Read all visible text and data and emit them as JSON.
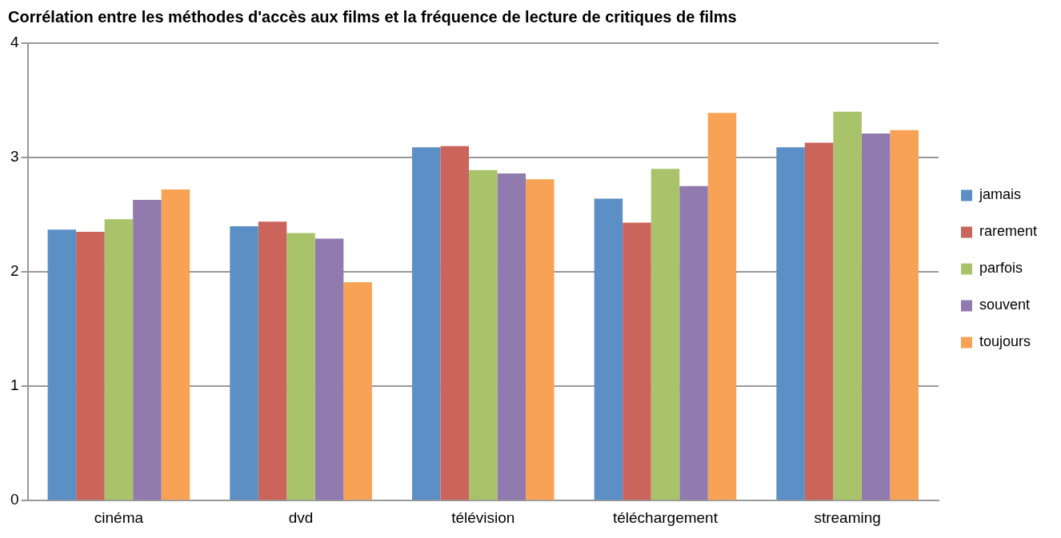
{
  "chart_data": {
    "type": "bar",
    "title": "Corrélation entre les méthodes d'accès aux films et la fréquence de lecture de critiques de films",
    "categories": [
      "cinéma",
      "dvd",
      "télévision",
      "téléchargement",
      "streaming"
    ],
    "series": [
      {
        "name": "jamais",
        "color": "#5b8fc5",
        "values": [
          2.37,
          2.4,
          3.09,
          2.64,
          3.09
        ]
      },
      {
        "name": "rarement",
        "color": "#cb655c",
        "values": [
          2.35,
          2.44,
          3.1,
          2.43,
          3.13
        ]
      },
      {
        "name": "parfois",
        "color": "#a9c36b",
        "values": [
          2.46,
          2.34,
          2.89,
          2.9,
          3.4
        ]
      },
      {
        "name": "souvent",
        "color": "#917aae",
        "values": [
          2.63,
          2.29,
          2.86,
          2.75,
          3.21
        ]
      },
      {
        "name": "toujours",
        "color": "#f8a255",
        "values": [
          2.72,
          1.91,
          2.81,
          3.39,
          3.24
        ]
      }
    ],
    "ylim": [
      0,
      4
    ],
    "yticks": [
      0,
      1,
      2,
      3,
      4
    ],
    "grid": "y",
    "legend": "right"
  }
}
